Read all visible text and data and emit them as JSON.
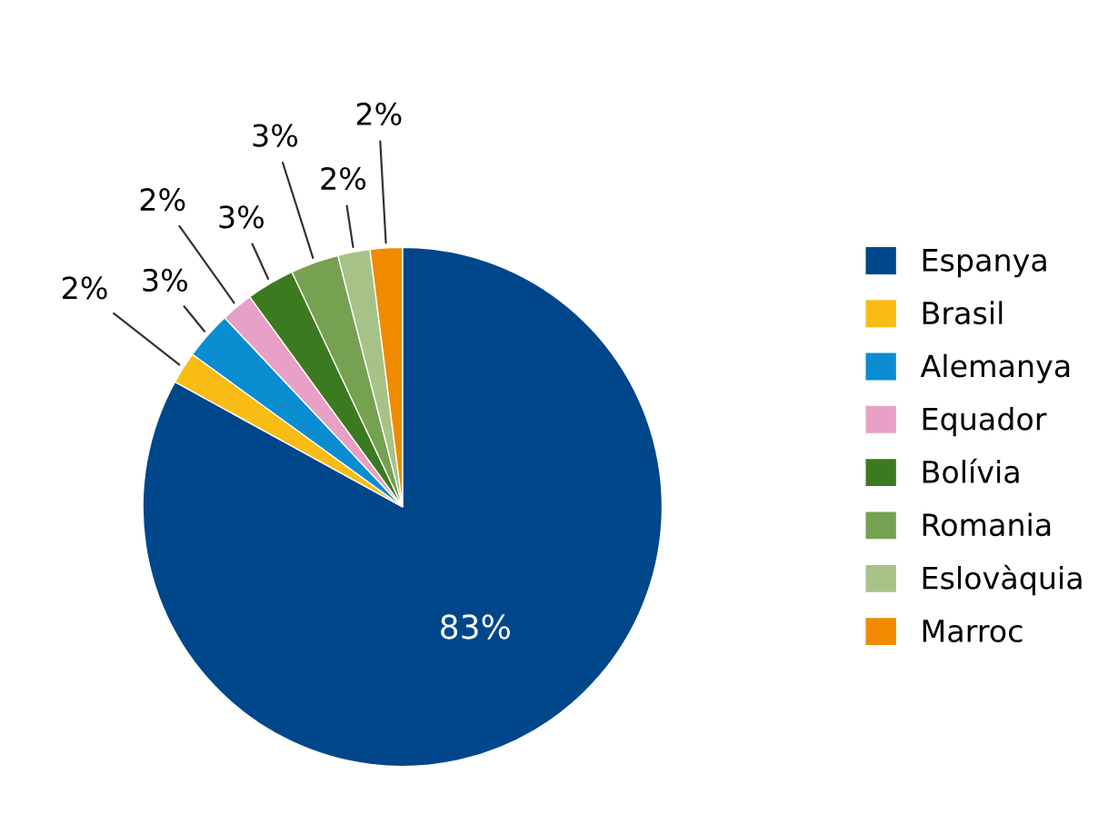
{
  "chart_data": {
    "type": "pie",
    "categories": [
      "Espanya",
      "Brasil",
      "Alemanya",
      "Equador",
      "Bolívia",
      "Romania",
      "Eslovàquia",
      "Marroc"
    ],
    "values": [
      83,
      2,
      3,
      2,
      3,
      3,
      2,
      2
    ],
    "value_labels": [
      "83%",
      "2%",
      "3%",
      "2%",
      "3%",
      "3%",
      "2%",
      "2%"
    ],
    "colors": [
      "#00468b",
      "#f9bc15",
      "#0a8dd0",
      "#e8a0c6",
      "#3c7a1f",
      "#76a150",
      "#a7c287",
      "#f08a00"
    ],
    "legend": "right"
  }
}
